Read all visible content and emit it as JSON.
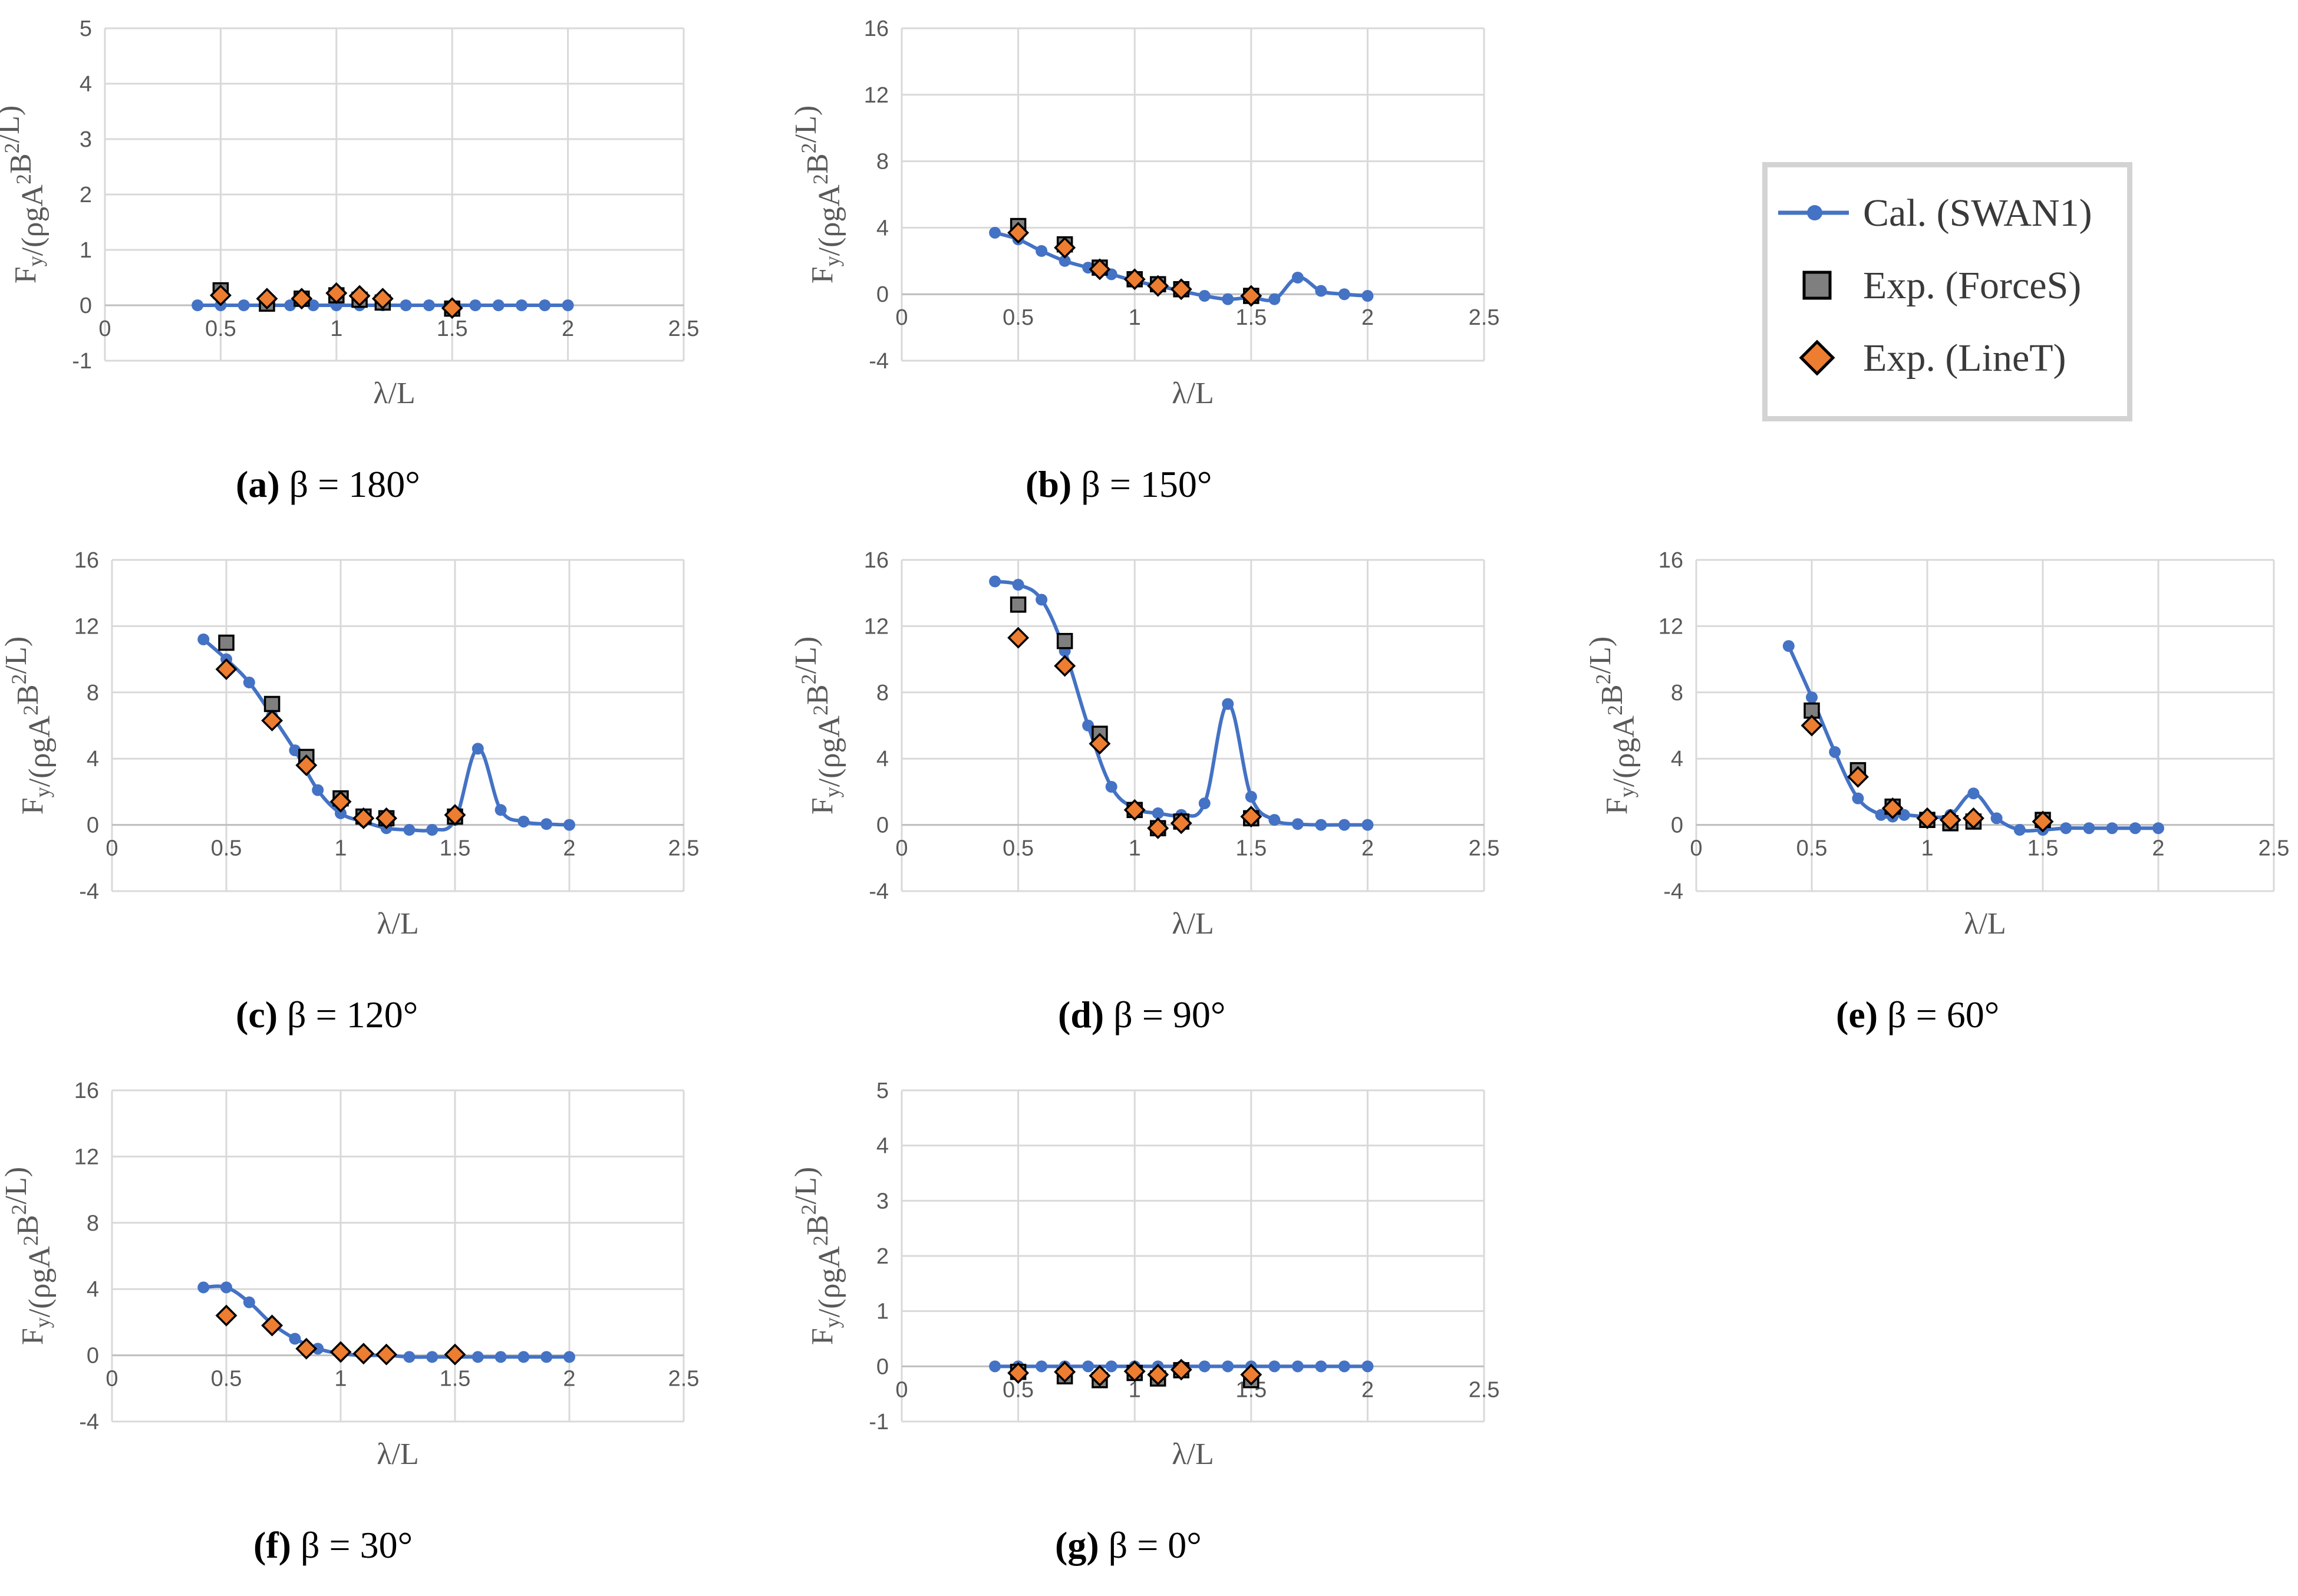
{
  "colors": {
    "line": "#4472C4",
    "forces_fill": "#7F7F7F",
    "linet_fill": "#ED7D31",
    "marker_edge": "#000000",
    "grid": "#d9d9d9",
    "axis_text": "#595959"
  },
  "legend": {
    "cal_label": "Cal. (SWAN1)",
    "forces_label": "Exp. (ForceS)",
    "linet_label": "Exp. (LineT)"
  },
  "chart_data": [
    {
      "id": "a",
      "type": "line",
      "caption_letter": "(a)",
      "caption_rest": " β = 180°",
      "xlabel": "λ/L",
      "ylabel": "F_y/(ρgA^2B^2/L)",
      "xlim": [
        0,
        2.5
      ],
      "xticks": [
        "0",
        "0.5",
        "1",
        "1.5",
        "2",
        "2.5"
      ],
      "ylim": [
        -1,
        5
      ],
      "yticks": [
        "-1",
        "0",
        "1",
        "2",
        "3",
        "4",
        "5"
      ],
      "series": [
        {
          "name": "Cal. (SWAN1)",
          "x": [
            0.4,
            0.5,
            0.6,
            0.7,
            0.8,
            0.9,
            1.0,
            1.1,
            1.2,
            1.3,
            1.4,
            1.5,
            1.6,
            1.7,
            1.8,
            1.9,
            2.0
          ],
          "y": [
            0,
            0,
            0,
            0,
            0,
            0,
            0,
            0,
            0,
            0,
            0,
            0,
            0,
            0,
            0,
            0,
            0
          ]
        },
        {
          "name": "Exp. (ForceS)",
          "x": [
            0.5,
            0.7,
            0.85,
            1.0,
            1.1,
            1.2,
            1.5
          ],
          "y": [
            0.27,
            0.03,
            0.12,
            0.18,
            0.1,
            0.05,
            -0.06
          ]
        },
        {
          "name": "Exp. (LineT)",
          "x": [
            0.5,
            0.7,
            0.85,
            1.0,
            1.1,
            1.2,
            1.5
          ],
          "y": [
            0.18,
            0.12,
            0.12,
            0.22,
            0.17,
            0.12,
            -0.05
          ]
        }
      ]
    },
    {
      "id": "b",
      "type": "line",
      "caption_letter": "(b)",
      "caption_rest": " β = 150°",
      "xlabel": "λ/L",
      "ylabel": "F_y/(ρgA^2B^2/L)",
      "xlim": [
        0,
        2.5
      ],
      "xticks": [
        "0",
        "0.5",
        "1",
        "1.5",
        "2",
        "2.5"
      ],
      "ylim": [
        -4,
        16
      ],
      "yticks": [
        "-4",
        "0",
        "4",
        "8",
        "12",
        "16"
      ],
      "series": [
        {
          "name": "Cal. (SWAN1)",
          "x": [
            0.4,
            0.5,
            0.6,
            0.7,
            0.8,
            0.9,
            1.0,
            1.1,
            1.2,
            1.3,
            1.4,
            1.5,
            1.6,
            1.7,
            1.8,
            1.9,
            2.0
          ],
          "y": [
            3.7,
            3.3,
            2.6,
            2.0,
            1.6,
            1.2,
            0.8,
            0.5,
            0.2,
            -0.1,
            -0.3,
            -0.2,
            -0.3,
            1.0,
            0.2,
            0.0,
            -0.1
          ]
        },
        {
          "name": "Exp. (ForceS)",
          "x": [
            0.5,
            0.7,
            0.85,
            1.0,
            1.1,
            1.2,
            1.5
          ],
          "y": [
            4.1,
            3.0,
            1.6,
            0.9,
            0.6,
            0.3,
            -0.1
          ]
        },
        {
          "name": "Exp. (LineT)",
          "x": [
            0.5,
            0.7,
            0.85,
            1.0,
            1.1,
            1.2,
            1.5
          ],
          "y": [
            3.7,
            2.8,
            1.5,
            0.9,
            0.5,
            0.3,
            -0.1
          ]
        }
      ]
    },
    {
      "id": "c",
      "type": "line",
      "caption_letter": "(c)",
      "caption_rest": " β = 120°",
      "xlabel": "λ/L",
      "ylabel": "F_y/(ρgA^2B^2/L)",
      "xlim": [
        0,
        2.5
      ],
      "xticks": [
        "0",
        "0.5",
        "1",
        "1.5",
        "2",
        "2.5"
      ],
      "ylim": [
        -4,
        16
      ],
      "yticks": [
        "-4",
        "0",
        "4",
        "8",
        "12",
        "16"
      ],
      "series": [
        {
          "name": "Cal. (SWAN1)",
          "x": [
            0.4,
            0.5,
            0.6,
            0.7,
            0.8,
            0.9,
            1.0,
            1.1,
            1.2,
            1.3,
            1.4,
            1.5,
            1.6,
            1.7,
            1.8,
            1.9,
            2.0
          ],
          "y": [
            11.2,
            10.0,
            8.6,
            6.6,
            4.5,
            2.1,
            0.7,
            0.2,
            -0.2,
            -0.3,
            -0.3,
            0.3,
            4.6,
            0.9,
            0.2,
            0.05,
            0.0
          ]
        },
        {
          "name": "Exp. (ForceS)",
          "x": [
            0.5,
            0.7,
            0.85,
            1.0,
            1.1,
            1.2,
            1.5
          ],
          "y": [
            11.0,
            7.3,
            4.1,
            1.6,
            0.5,
            0.4,
            0.5
          ]
        },
        {
          "name": "Exp. (LineT)",
          "x": [
            0.5,
            0.7,
            0.85,
            1.0,
            1.1,
            1.2,
            1.5
          ],
          "y": [
            9.4,
            6.3,
            3.6,
            1.4,
            0.4,
            0.4,
            0.6
          ]
        }
      ]
    },
    {
      "id": "d",
      "type": "line",
      "caption_letter": "(d)",
      "caption_rest": " β = 90°",
      "xlabel": "λ/L",
      "ylabel": "F_y/(ρgA^2B^2/L)",
      "xlim": [
        0,
        2.5
      ],
      "xticks": [
        "0",
        "0.5",
        "1",
        "1.5",
        "2",
        "2.5"
      ],
      "ylim": [
        -4,
        16
      ],
      "yticks": [
        "-4",
        "0",
        "4",
        "8",
        "12",
        "16"
      ],
      "series": [
        {
          "name": "Cal. (SWAN1)",
          "x": [
            0.4,
            0.5,
            0.6,
            0.7,
            0.8,
            0.9,
            1.0,
            1.1,
            1.2,
            1.3,
            1.4,
            1.5,
            1.6,
            1.7,
            1.8,
            1.9,
            2.0
          ],
          "y": [
            14.7,
            14.5,
            13.6,
            10.5,
            6.0,
            2.3,
            1.0,
            0.7,
            0.6,
            1.3,
            7.3,
            1.7,
            0.3,
            0.05,
            0.0,
            0.0,
            0.0
          ]
        },
        {
          "name": "Exp. (ForceS)",
          "x": [
            0.5,
            0.7,
            0.85,
            1.0,
            1.1,
            1.2,
            1.5
          ],
          "y": [
            13.3,
            11.1,
            5.5,
            0.9,
            -0.2,
            0.2,
            0.4
          ]
        },
        {
          "name": "Exp. (LineT)",
          "x": [
            0.5,
            0.7,
            0.85,
            1.0,
            1.1,
            1.2,
            1.5
          ],
          "y": [
            11.3,
            9.6,
            4.9,
            0.9,
            -0.2,
            0.1,
            0.5
          ]
        }
      ]
    },
    {
      "id": "e",
      "type": "line",
      "caption_letter": "(e)",
      "caption_rest": " β = 60°",
      "xlabel": "λ/L",
      "ylabel": "F_y/(ρgA^2B^2/L)",
      "xlim": [
        0,
        2.5
      ],
      "xticks": [
        "0",
        "0.5",
        "1",
        "1.5",
        "2",
        "2.5"
      ],
      "ylim": [
        -4,
        16
      ],
      "yticks": [
        "-4",
        "0",
        "4",
        "8",
        "12",
        "16"
      ],
      "series": [
        {
          "name": "Cal. (SWAN1)",
          "x": [
            0.4,
            0.5,
            0.6,
            0.7,
            0.8,
            0.85,
            0.9,
            1.0,
            1.1,
            1.2,
            1.3,
            1.4,
            1.5,
            1.6,
            1.7,
            1.8,
            1.9,
            2.0
          ],
          "y": [
            10.8,
            7.7,
            4.4,
            1.6,
            0.6,
            0.5,
            0.6,
            0.5,
            0.6,
            1.9,
            0.4,
            -0.3,
            -0.3,
            -0.2,
            -0.2,
            -0.2,
            -0.2,
            -0.2
          ]
        },
        {
          "name": "Exp. (ForceS)",
          "x": [
            0.5,
            0.7,
            0.85,
            1.0,
            1.1,
            1.2,
            1.5
          ],
          "y": [
            6.9,
            3.3,
            1.1,
            0.3,
            0.1,
            0.2,
            0.3
          ]
        },
        {
          "name": "Exp. (LineT)",
          "x": [
            0.5,
            0.7,
            0.85,
            1.0,
            1.1,
            1.2,
            1.5
          ],
          "y": [
            6.0,
            2.9,
            1.0,
            0.4,
            0.3,
            0.4,
            0.2
          ]
        }
      ]
    },
    {
      "id": "f",
      "type": "line",
      "caption_letter": "(f)",
      "caption_rest": " β = 30°",
      "xlabel": "λ/L",
      "ylabel": "F_y/(ρgA^2B^2/L)",
      "xlim": [
        0,
        2.5
      ],
      "xticks": [
        "0",
        "0.5",
        "1",
        "1.5",
        "2",
        "2.5"
      ],
      "ylim": [
        -4,
        16
      ],
      "yticks": [
        "-4",
        "0",
        "4",
        "8",
        "12",
        "16"
      ],
      "series": [
        {
          "name": "Cal. (SWAN1)",
          "x": [
            0.4,
            0.5,
            0.6,
            0.7,
            0.8,
            0.9,
            1.0,
            1.1,
            1.2,
            1.3,
            1.4,
            1.5,
            1.6,
            1.7,
            1.8,
            1.9,
            2.0
          ],
          "y": [
            4.1,
            4.1,
            3.2,
            1.9,
            1.0,
            0.4,
            0.1,
            0.0,
            0.0,
            -0.1,
            -0.1,
            -0.1,
            -0.1,
            -0.1,
            -0.1,
            -0.1,
            -0.1
          ]
        },
        {
          "name": "Exp. (ForceS)",
          "x": [],
          "y": []
        },
        {
          "name": "Exp. (LineT)",
          "x": [
            0.5,
            0.7,
            0.85,
            1.0,
            1.1,
            1.2,
            1.5
          ],
          "y": [
            2.4,
            1.8,
            0.4,
            0.2,
            0.1,
            0.05,
            0.05
          ]
        }
      ]
    },
    {
      "id": "g",
      "type": "line",
      "caption_letter": "(g)",
      "caption_rest": " β = 0°",
      "xlabel": "λ/L",
      "ylabel": "F_y/(ρgA^2B^2/L)",
      "xlim": [
        0,
        2.5
      ],
      "xticks": [
        "0",
        "0.5",
        "1",
        "1.5",
        "2",
        "2.5"
      ],
      "ylim": [
        -1,
        5
      ],
      "yticks": [
        "-1",
        "0",
        "1",
        "2",
        "3",
        "4",
        "5"
      ],
      "series": [
        {
          "name": "Cal. (SWAN1)",
          "x": [
            0.4,
            0.5,
            0.6,
            0.7,
            0.8,
            0.9,
            1.0,
            1.1,
            1.2,
            1.3,
            1.4,
            1.5,
            1.6,
            1.7,
            1.8,
            1.9,
            2.0
          ],
          "y": [
            0,
            0,
            0,
            0,
            0,
            0,
            0,
            0,
            0,
            0,
            0,
            0,
            0,
            0,
            0,
            0,
            0
          ]
        },
        {
          "name": "Exp. (ForceS)",
          "x": [
            0.5,
            0.7,
            0.85,
            1.0,
            1.1,
            1.2,
            1.5
          ],
          "y": [
            -0.1,
            -0.18,
            -0.25,
            -0.12,
            -0.22,
            -0.07,
            -0.25
          ]
        },
        {
          "name": "Exp. (LineT)",
          "x": [
            0.5,
            0.7,
            0.85,
            1.0,
            1.1,
            1.2,
            1.5
          ],
          "y": [
            -0.12,
            -0.1,
            -0.17,
            -0.09,
            -0.15,
            -0.06,
            -0.15
          ]
        }
      ]
    }
  ]
}
